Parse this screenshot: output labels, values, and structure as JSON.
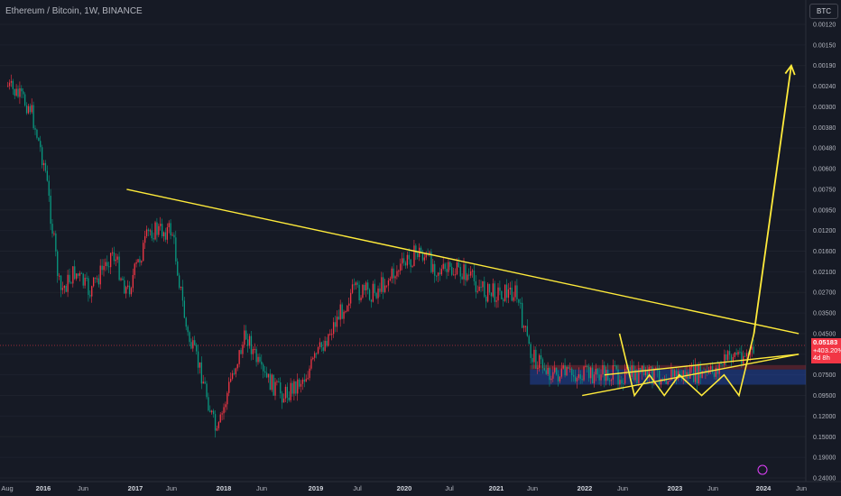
{
  "header": {
    "title": "Ethereum / Bitcoin, 1W, BINANCE"
  },
  "currency_badge": "BTC",
  "price_tag": {
    "price": "0.05183",
    "change": "+403.20%",
    "countdown": "4d 8h",
    "color": "#f23645"
  },
  "colors": {
    "background": "#161a25",
    "up_candle": "#f23645",
    "down_candle": "#089981",
    "trendline": "#ffeb3b",
    "resistance_zone": "#f23645",
    "support_zone": "#2962ff"
  },
  "chart_data": {
    "type": "candlestick",
    "title": "Ethereum / Bitcoin, 1W, BINANCE",
    "y_scale": "inverted-log",
    "y_axis_note": "Price scale is inverted: higher BTC values are drawn lower",
    "y_ticks": [
      "0.00120",
      "0.00150",
      "0.00190",
      "0.00240",
      "0.00300",
      "0.00380",
      "0.00480",
      "0.00600",
      "0.00750",
      "0.00950",
      "0.01200",
      "0.01600",
      "0.02100",
      "0.02700",
      "0.03500",
      "0.04500",
      "0.05183",
      "0.07500",
      "0.09500",
      "0.12000",
      "0.15000",
      "0.19000",
      "0.24000"
    ],
    "x_ticks": [
      {
        "label": "Aug",
        "year": false
      },
      {
        "label": "2016",
        "year": true
      },
      {
        "label": "Jun",
        "year": false
      },
      {
        "label": "2017",
        "year": true
      },
      {
        "label": "Jun",
        "year": false
      },
      {
        "label": "2018",
        "year": true
      },
      {
        "label": "Jun",
        "year": false
      },
      {
        "label": "2019",
        "year": true
      },
      {
        "label": "Jul",
        "year": false
      },
      {
        "label": "2020",
        "year": true
      },
      {
        "label": "Jul",
        "year": false
      },
      {
        "label": "2021",
        "year": true
      },
      {
        "label": "Jun",
        "year": false
      },
      {
        "label": "2022",
        "year": true
      },
      {
        "label": "Jun",
        "year": false
      },
      {
        "label": "2023",
        "year": true
      },
      {
        "label": "Jun",
        "year": false
      },
      {
        "label": "2024",
        "year": true
      },
      {
        "label": "Jun",
        "year": false
      }
    ],
    "x_range": [
      "2015-08",
      "2024-06"
    ],
    "current_price": 0.05183,
    "series_close": [
      {
        "date": "2015-08",
        "value": 0.0024
      },
      {
        "date": "2015-11",
        "value": 0.003
      },
      {
        "date": "2016-01",
        "value": 0.006
      },
      {
        "date": "2016-03",
        "value": 0.027
      },
      {
        "date": "2016-05",
        "value": 0.021
      },
      {
        "date": "2016-07",
        "value": 0.027
      },
      {
        "date": "2016-10",
        "value": 0.016
      },
      {
        "date": "2016-12",
        "value": 0.027
      },
      {
        "date": "2017-03",
        "value": 0.012
      },
      {
        "date": "2017-06",
        "value": 0.012
      },
      {
        "date": "2017-08",
        "value": 0.045
      },
      {
        "date": "2017-10",
        "value": 0.075
      },
      {
        "date": "2017-12",
        "value": 0.15
      },
      {
        "date": "2018-02",
        "value": 0.075
      },
      {
        "date": "2018-04",
        "value": 0.045
      },
      {
        "date": "2018-06",
        "value": 0.075
      },
      {
        "date": "2018-09",
        "value": 0.095
      },
      {
        "date": "2018-12",
        "value": 0.075
      },
      {
        "date": "2019-03",
        "value": 0.045
      },
      {
        "date": "2019-06",
        "value": 0.027
      },
      {
        "date": "2019-09",
        "value": 0.027
      },
      {
        "date": "2019-12",
        "value": 0.021
      },
      {
        "date": "2020-03",
        "value": 0.016
      },
      {
        "date": "2020-06",
        "value": 0.021
      },
      {
        "date": "2020-09",
        "value": 0.021
      },
      {
        "date": "2020-12",
        "value": 0.027
      },
      {
        "date": "2021-02",
        "value": 0.027
      },
      {
        "date": "2021-04",
        "value": 0.027
      },
      {
        "date": "2021-06",
        "value": 0.05183
      },
      {
        "date": "2021-09",
        "value": 0.075
      },
      {
        "date": "2021-12",
        "value": 0.075
      },
      {
        "date": "2022-03",
        "value": 0.075
      },
      {
        "date": "2022-06",
        "value": 0.075
      },
      {
        "date": "2022-09",
        "value": 0.075
      },
      {
        "date": "2022-12",
        "value": 0.075
      },
      {
        "date": "2023-03",
        "value": 0.075
      },
      {
        "date": "2023-06",
        "value": 0.075
      },
      {
        "date": "2023-09",
        "value": 0.05183
      },
      {
        "date": "2023-12",
        "value": 0.05183
      }
    ],
    "annotations": {
      "trendline": [
        {
          "date": "2016-12",
          "value": 0.0075
        },
        {
          "date": "2024-06",
          "value": 0.045
        }
      ],
      "wedge_upper": [
        {
          "date": "2022-04",
          "value": 0.075
        },
        {
          "date": "2024-06",
          "value": 0.05183
        }
      ],
      "wedge_lower": [
        {
          "date": "2022-01",
          "value": 0.095
        },
        {
          "date": "2024-06",
          "value": 0.05183
        }
      ],
      "zigzag": [
        {
          "date": "2022-06",
          "value": 0.045
        },
        {
          "date": "2022-08",
          "value": 0.095
        },
        {
          "date": "2022-10",
          "value": 0.075
        },
        {
          "date": "2022-12",
          "value": 0.095
        },
        {
          "date": "2023-02",
          "value": 0.075
        },
        {
          "date": "2023-05",
          "value": 0.095
        },
        {
          "date": "2023-08",
          "value": 0.075
        },
        {
          "date": "2023-10",
          "value": 0.095
        },
        {
          "date": "2023-12",
          "value": 0.045
        }
      ],
      "projection": [
        {
          "date": "2023-12",
          "value": 0.045
        },
        {
          "date": "2024-05",
          "value": 0.0019
        }
      ],
      "resistance_zone": [
        0.05183,
        0.075
      ],
      "support_zone": [
        0.075,
        0.095
      ]
    }
  }
}
